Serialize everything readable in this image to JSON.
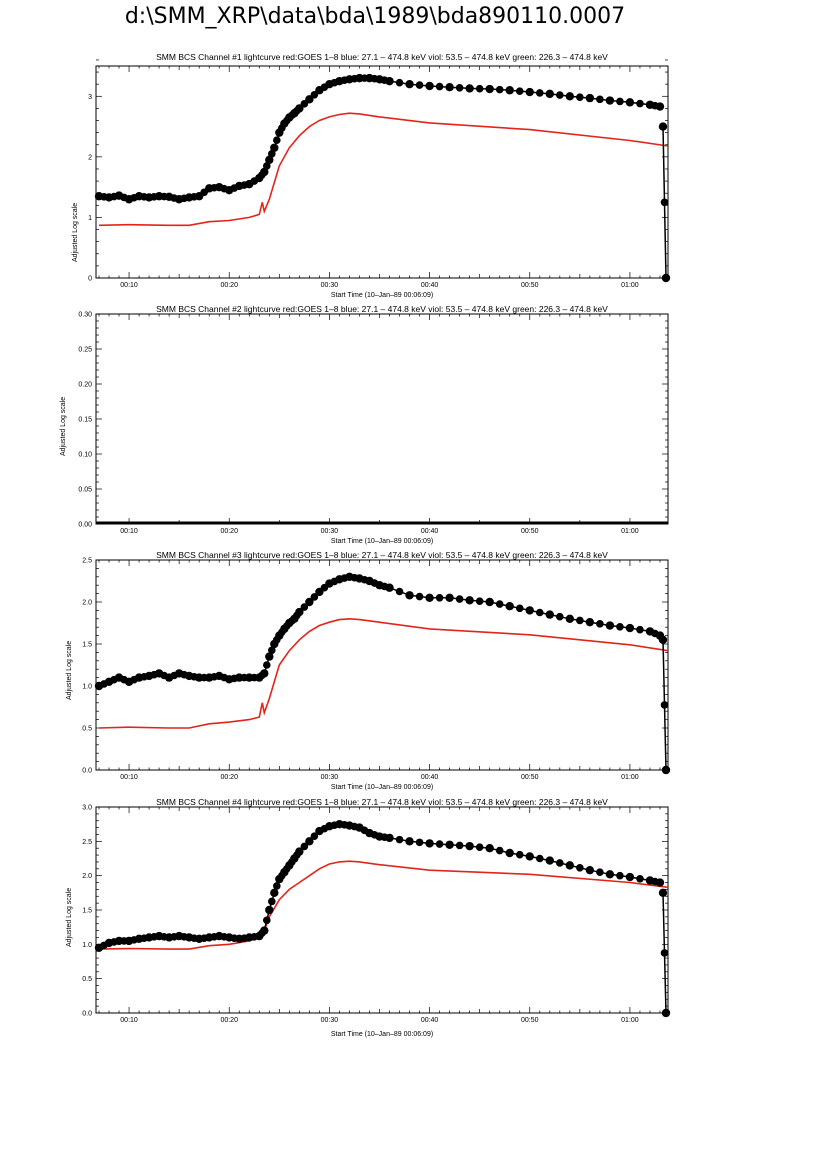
{
  "page": {
    "title": "d:\\SMM_XRP\\data\\bda\\1989\\bda890110.0007"
  },
  "colors": {
    "goes": "#e3241b",
    "bcs": "#000000"
  },
  "chart_data": [
    {
      "type": "scatter",
      "title": "SMM BCS Channel #1 lightcurve  red:GOES 1–8  blue: 27.1 – 474.8 keV  viol: 53.5 – 474.8 keV  green: 226.3 – 474.8 keV",
      "xlabel": "Start Time (10–Jan–89 00:06:09)",
      "ylabel": "Adjusted Log scale",
      "xlim": [
        6.7,
        63.8
      ],
      "ylim": [
        0,
        3.5
      ],
      "yticks": [
        0,
        1,
        2,
        3
      ],
      "yticklabels": [
        "0",
        "1",
        "2",
        "3"
      ],
      "xticks": [
        10,
        20,
        30,
        40,
        50,
        60
      ],
      "xticklabels": [
        "00:10",
        "00:20",
        "00:30",
        "00:40",
        "00:50",
        "01:00"
      ],
      "series": [
        {
          "name": "red:GOES 1–8",
          "style": "line",
          "x": [
            7,
            10,
            14,
            16,
            18,
            20,
            22,
            23,
            23.3,
            23.5,
            24,
            25,
            26,
            27,
            28,
            29,
            30,
            31,
            32,
            33,
            35,
            40,
            50,
            60,
            63.8
          ],
          "y": [
            0.87,
            0.88,
            0.87,
            0.87,
            0.93,
            0.95,
            1.0,
            1.05,
            1.25,
            1.1,
            1.3,
            1.85,
            2.15,
            2.35,
            2.5,
            2.6,
            2.66,
            2.7,
            2.72,
            2.71,
            2.66,
            2.56,
            2.45,
            2.27,
            2.18
          ]
        },
        {
          "name": "BCS Channel #1",
          "style": "dots",
          "x": [
            7,
            8,
            9,
            10,
            11,
            12,
            13,
            14,
            15,
            16,
            17,
            18,
            19,
            20,
            21,
            22,
            23,
            23.5,
            24,
            24.5,
            25,
            25.5,
            26,
            26.5,
            27,
            28,
            29,
            30,
            31,
            32,
            33,
            34,
            35,
            36,
            38,
            40,
            42,
            44,
            46,
            48,
            50,
            52,
            54,
            56,
            58,
            60,
            62,
            63
          ],
          "y": [
            1.35,
            1.33,
            1.36,
            1.3,
            1.35,
            1.33,
            1.35,
            1.34,
            1.3,
            1.33,
            1.35,
            1.48,
            1.5,
            1.45,
            1.52,
            1.55,
            1.65,
            1.75,
            1.95,
            2.15,
            2.4,
            2.55,
            2.65,
            2.72,
            2.8,
            2.95,
            3.1,
            3.2,
            3.25,
            3.28,
            3.3,
            3.3,
            3.28,
            3.25,
            3.2,
            3.17,
            3.15,
            3.13,
            3.12,
            3.1,
            3.07,
            3.04,
            3.0,
            2.97,
            2.93,
            2.9,
            2.86,
            2.83
          ]
        },
        {
          "name": "BCS Channel #1 drop",
          "style": "dots",
          "x": [
            63.3,
            63.6
          ],
          "y": [
            2.5,
            0.0
          ]
        }
      ]
    },
    {
      "type": "scatter",
      "title": "SMM BCS Channel #2 lightcurve  red:GOES 1–8  blue: 27.1 – 474.8 keV  viol: 53.5 – 474.8 keV  green: 226.3 – 474.8 keV",
      "xlabel": "Start Time (10–Jan–89 00:06:09)",
      "ylabel": "Adjusted Log scale",
      "xlim": [
        6.7,
        63.8
      ],
      "ylim": [
        0,
        0.3
      ],
      "yticks": [
        0,
        0.05,
        0.1,
        0.15,
        0.2,
        0.25,
        0.3
      ],
      "yticklabels": [
        "0.00",
        "0.05",
        "0.10",
        "0.15",
        "0.20",
        "0.25",
        "0.30"
      ],
      "xticks": [
        10,
        20,
        30,
        40,
        50,
        60
      ],
      "xticklabels": [
        "00:10",
        "00:20",
        "00:30",
        "00:40",
        "00:50",
        "01:00"
      ],
      "series": [
        {
          "name": "BCS Channel #2",
          "style": "flat",
          "x": [
            6.7,
            63.8
          ],
          "y": [
            0,
            0
          ]
        }
      ]
    },
    {
      "type": "scatter",
      "title": "SMM BCS Channel #3 lightcurve  red:GOES 1–8  blue: 27.1 – 474.8 keV  viol: 53.5 – 474.8 keV  green: 226.3 – 474.8 keV",
      "xlabel": "Start Time (10–Jan–89 00:06:09)",
      "ylabel": "Adjusted Log scale",
      "xlim": [
        6.7,
        63.8
      ],
      "ylim": [
        0,
        2.5
      ],
      "yticks": [
        0,
        0.5,
        1.0,
        1.5,
        2.0,
        2.5
      ],
      "yticklabels": [
        "0.0",
        "0.5",
        "1.0",
        "1.5",
        "2.0",
        "2.5"
      ],
      "xticks": [
        10,
        20,
        30,
        40,
        50,
        60
      ],
      "xticklabels": [
        "00:10",
        "00:20",
        "00:30",
        "00:40",
        "00:50",
        "01:00"
      ],
      "series": [
        {
          "name": "red:GOES 1–8",
          "style": "line",
          "x": [
            7,
            10,
            14,
            16,
            18,
            20,
            22,
            23,
            23.3,
            23.5,
            24,
            25,
            26,
            27,
            28,
            29,
            30,
            31,
            32,
            33,
            35,
            40,
            50,
            60,
            63.8
          ],
          "y": [
            0.5,
            0.51,
            0.5,
            0.5,
            0.55,
            0.57,
            0.6,
            0.63,
            0.8,
            0.68,
            0.85,
            1.25,
            1.42,
            1.55,
            1.65,
            1.72,
            1.76,
            1.79,
            1.8,
            1.79,
            1.76,
            1.68,
            1.61,
            1.49,
            1.42
          ]
        },
        {
          "name": "BCS Channel #3",
          "style": "dots",
          "x": [
            7,
            8,
            9,
            10,
            11,
            12,
            13,
            14,
            15,
            16,
            17,
            18,
            19,
            20,
            21,
            22,
            23,
            23.5,
            24,
            24.5,
            25,
            25.5,
            26,
            26.5,
            27,
            28,
            29,
            30,
            31,
            32,
            33,
            34,
            35,
            36,
            38,
            40,
            42,
            44,
            46,
            48,
            50,
            52,
            54,
            56,
            58,
            60,
            62,
            63
          ],
          "y": [
            1.0,
            1.05,
            1.1,
            1.05,
            1.1,
            1.12,
            1.15,
            1.1,
            1.15,
            1.12,
            1.1,
            1.1,
            1.12,
            1.08,
            1.1,
            1.1,
            1.1,
            1.15,
            1.35,
            1.5,
            1.6,
            1.68,
            1.75,
            1.8,
            1.88,
            2.0,
            2.12,
            2.22,
            2.27,
            2.3,
            2.28,
            2.25,
            2.2,
            2.17,
            2.08,
            2.05,
            2.05,
            2.02,
            2.0,
            1.95,
            1.9,
            1.85,
            1.8,
            1.76,
            1.72,
            1.69,
            1.65,
            1.6
          ]
        },
        {
          "name": "BCS Channel #3 drop",
          "style": "dots",
          "x": [
            63.3,
            63.6
          ],
          "y": [
            1.55,
            0.0
          ]
        }
      ]
    },
    {
      "type": "scatter",
      "title": "SMM BCS Channel #4 lightcurve  red:GOES 1–8  blue: 27.1 – 474.8 keV  viol: 53.5 – 474.8 keV  green: 226.3 – 474.8 keV",
      "xlabel": "Start Time (10–Jan–89 00:06:09)",
      "ylabel": "Adjusted Log scale",
      "xlim": [
        6.7,
        63.8
      ],
      "ylim": [
        0,
        3.0
      ],
      "yticks": [
        0,
        0.5,
        1.0,
        1.5,
        2.0,
        2.5,
        3.0
      ],
      "yticklabels": [
        "0.0",
        "0.5",
        "1.0",
        "1.5",
        "2.0",
        "2.5",
        "3.0"
      ],
      "xticks": [
        10,
        20,
        30,
        40,
        50,
        60
      ],
      "xticklabels": [
        "00:10",
        "00:20",
        "00:30",
        "00:40",
        "00:50",
        "01:00"
      ],
      "series": [
        {
          "name": "red:GOES 1–8",
          "style": "line",
          "x": [
            7,
            10,
            14,
            16,
            18,
            20,
            22,
            23,
            23.5,
            24,
            25,
            26,
            27,
            28,
            29,
            30,
            31,
            32,
            33,
            35,
            40,
            50,
            60,
            63.8
          ],
          "y": [
            0.93,
            0.94,
            0.93,
            0.93,
            0.98,
            1.0,
            1.05,
            1.1,
            1.2,
            1.4,
            1.65,
            1.8,
            1.9,
            2.0,
            2.1,
            2.17,
            2.2,
            2.21,
            2.2,
            2.16,
            2.08,
            2.02,
            1.9,
            1.83
          ]
        },
        {
          "name": "BCS Channel #4",
          "style": "dots",
          "x": [
            7,
            8,
            9,
            10,
            11,
            12,
            13,
            14,
            15,
            16,
            17,
            18,
            19,
            20,
            21,
            22,
            23,
            23.5,
            24,
            24.5,
            25,
            25.5,
            26,
            26.5,
            27,
            28,
            29,
            30,
            31,
            32,
            33,
            34,
            35,
            36,
            38,
            40,
            42,
            44,
            46,
            48,
            50,
            52,
            54,
            56,
            58,
            60,
            62,
            63
          ],
          "y": [
            0.95,
            1.02,
            1.05,
            1.05,
            1.08,
            1.1,
            1.12,
            1.1,
            1.12,
            1.1,
            1.08,
            1.1,
            1.12,
            1.1,
            1.08,
            1.1,
            1.12,
            1.2,
            1.5,
            1.75,
            1.95,
            2.05,
            2.15,
            2.25,
            2.35,
            2.5,
            2.65,
            2.72,
            2.75,
            2.73,
            2.7,
            2.62,
            2.57,
            2.55,
            2.5,
            2.47,
            2.45,
            2.43,
            2.4,
            2.33,
            2.28,
            2.22,
            2.15,
            2.08,
            2.02,
            1.98,
            1.93,
            1.9
          ]
        },
        {
          "name": "BCS Channel #4 drop",
          "style": "dots",
          "x": [
            63.3,
            63.6
          ],
          "y": [
            1.75,
            0.0
          ]
        }
      ]
    }
  ]
}
